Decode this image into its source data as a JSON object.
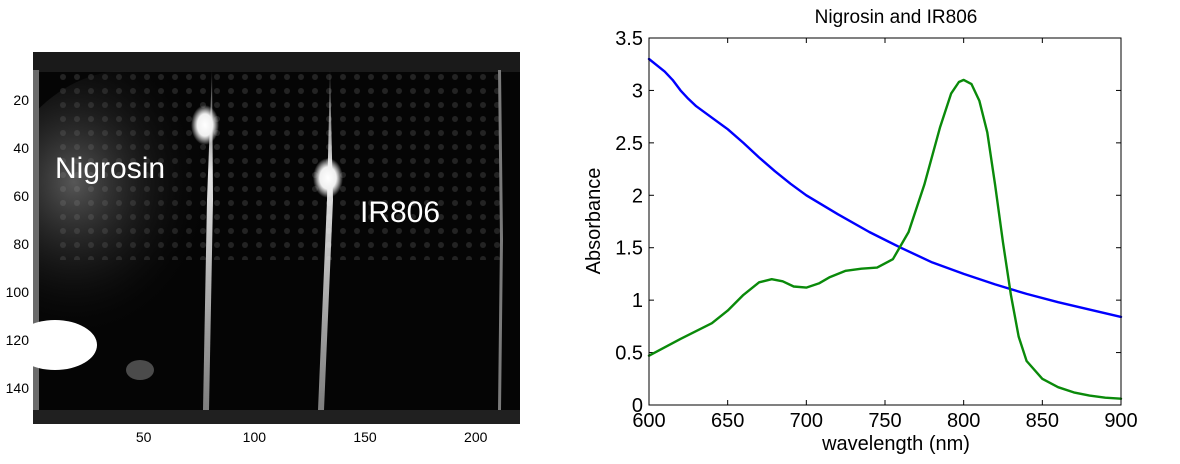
{
  "chart_data": [
    {
      "type": "heatmap",
      "title": "",
      "xlabel": "",
      "ylabel": "",
      "xlim": [
        0,
        220
      ],
      "ylim": [
        155,
        0
      ],
      "xticks": [
        "50",
        "100",
        "150",
        "200"
      ],
      "yticks": [
        "20",
        "40",
        "60",
        "80",
        "100",
        "120",
        "140"
      ],
      "colormap": "gray",
      "annotations": [
        "Nigrosin",
        "IR806"
      ]
    },
    {
      "type": "line",
      "title": "Nigrosin and IR806",
      "xlabel": "wavelength (nm)",
      "ylabel": "Absorbance",
      "xlim": [
        600,
        900
      ],
      "ylim": [
        0,
        3.5
      ],
      "xticks": [
        "600",
        "650",
        "700",
        "750",
        "800",
        "850",
        "900"
      ],
      "yticks": [
        "0",
        "0.5",
        "1",
        "1.5",
        "2",
        "2.5",
        "3",
        "3.5"
      ],
      "grid": false,
      "series": [
        {
          "color": "#0000ff",
          "x": [
            600,
            605,
            610,
            615,
            620,
            625,
            630,
            640,
            650,
            660,
            670,
            680,
            690,
            700,
            720,
            740,
            760,
            780,
            800,
            820,
            840,
            860,
            880,
            900
          ],
          "y": [
            3.3,
            3.24,
            3.18,
            3.1,
            3.0,
            2.92,
            2.85,
            2.74,
            2.63,
            2.5,
            2.36,
            2.23,
            2.11,
            2.0,
            1.82,
            1.65,
            1.5,
            1.36,
            1.25,
            1.15,
            1.06,
            0.98,
            0.91,
            0.84
          ]
        },
        {
          "color": "#0a8a0a",
          "x": [
            600,
            620,
            640,
            650,
            660,
            670,
            678,
            685,
            692,
            700,
            708,
            715,
            725,
            735,
            745,
            755,
            765,
            775,
            785,
            792,
            797,
            800,
            805,
            810,
            815,
            820,
            825,
            830,
            835,
            840,
            850,
            860,
            870,
            880,
            890,
            900
          ],
          "y": [
            0.47,
            0.63,
            0.78,
            0.9,
            1.05,
            1.17,
            1.2,
            1.18,
            1.13,
            1.12,
            1.16,
            1.22,
            1.28,
            1.3,
            1.31,
            1.39,
            1.65,
            2.1,
            2.65,
            2.97,
            3.08,
            3.1,
            3.06,
            2.9,
            2.6,
            2.1,
            1.55,
            1.05,
            0.65,
            0.42,
            0.25,
            0.17,
            0.12,
            0.09,
            0.07,
            0.06
          ]
        }
      ]
    }
  ]
}
